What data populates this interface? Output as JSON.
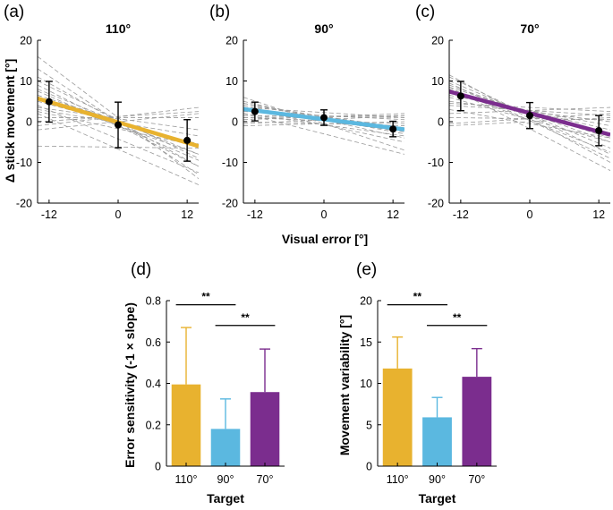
{
  "figure": {
    "ylabel_top": "Δ stick movement [°]",
    "xlabel_top": "Visual error [°]"
  },
  "top_panels": [
    {
      "label": "(a)",
      "title": "110°",
      "color": "#E8B22F",
      "x_ticks": [
        -12,
        0,
        12
      ],
      "y_ticks": [
        20,
        10,
        0,
        -10,
        -20
      ],
      "ylim": [
        -20,
        20
      ],
      "xlim": [
        -14,
        14
      ],
      "mean_line": {
        "x": [
          -14,
          14
        ],
        "y": [
          5.7,
          -6.0
        ]
      },
      "points": [
        {
          "x": -12,
          "y": 4.9,
          "err": 5.0
        },
        {
          "x": 0,
          "y": -0.8,
          "err": 5.6
        },
        {
          "x": 12,
          "y": -4.6,
          "err": 5.1
        }
      ],
      "subject_lines": [
        [
          16.0,
          -14.0
        ],
        [
          13.0,
          -13.0
        ],
        [
          11.0,
          -11.0
        ],
        [
          10.0,
          -9.0
        ],
        [
          9.0,
          -11.0
        ],
        [
          8.0,
          -8.0
        ],
        [
          7.5,
          -9.5
        ],
        [
          6.5,
          -6.0
        ],
        [
          6.0,
          -8.0
        ],
        [
          5.0,
          -5.5
        ],
        [
          4.0,
          -12.5
        ],
        [
          3.5,
          -2.0
        ],
        [
          2.5,
          -6.0
        ],
        [
          2.0,
          -15.5
        ],
        [
          1.0,
          1.0
        ],
        [
          0.0,
          2.5
        ],
        [
          -1.0,
          3.5
        ],
        [
          -2.0,
          2.0
        ],
        [
          -6.0,
          -6.5
        ],
        [
          3.0,
          -3.5
        ]
      ]
    },
    {
      "label": "(b)",
      "title": "90°",
      "color": "#5BB8E0",
      "x_ticks": [
        -12,
        0,
        12
      ],
      "y_ticks": [
        20,
        10,
        0,
        -10,
        -20
      ],
      "ylim": [
        -20,
        20
      ],
      "xlim": [
        -14,
        14
      ],
      "mean_line": {
        "x": [
          -14,
          14
        ],
        "y": [
          3.1,
          -1.9
        ]
      },
      "points": [
        {
          "x": -12,
          "y": 2.5,
          "err": 2.3
        },
        {
          "x": 0,
          "y": 1.0,
          "err": 1.9
        },
        {
          "x": 12,
          "y": -1.8,
          "err": 1.9
        }
      ],
      "subject_lines": [
        [
          5.0,
          -4.0
        ],
        [
          4.5,
          -3.0
        ],
        [
          4.0,
          -1.5
        ],
        [
          3.5,
          -5.0
        ],
        [
          3.0,
          -2.5
        ],
        [
          2.5,
          0.5
        ],
        [
          2.0,
          -3.5
        ],
        [
          1.5,
          1.0
        ],
        [
          1.0,
          -0.5
        ],
        [
          0.5,
          2.0
        ],
        [
          0.0,
          -1.0
        ],
        [
          -0.5,
          1.5
        ],
        [
          -1.0,
          0.0
        ],
        [
          6.0,
          -7.0
        ],
        [
          3.5,
          1.0
        ],
        [
          2.0,
          -8.0
        ],
        [
          1.0,
          1.5
        ],
        [
          4.5,
          -2.0
        ]
      ]
    },
    {
      "label": "(c)",
      "title": "70°",
      "color": "#7B2D8E",
      "x_ticks": [
        -12,
        0,
        12
      ],
      "y_ticks": [
        20,
        10,
        0,
        -10,
        -20
      ],
      "ylim": [
        -20,
        20
      ],
      "xlim": [
        -14,
        14
      ],
      "mean_line": {
        "x": [
          -14,
          14
        ],
        "y": [
          7.4,
          -3.2
        ]
      },
      "points": [
        {
          "x": -12,
          "y": 6.3,
          "err": 3.6
        },
        {
          "x": 0,
          "y": 1.5,
          "err": 3.2
        },
        {
          "x": 12,
          "y": -2.2,
          "err": 3.7
        }
      ],
      "subject_lines": [
        [
          11.5,
          -10.0
        ],
        [
          11.0,
          -8.0
        ],
        [
          10.0,
          -6.5
        ],
        [
          9.5,
          -9.0
        ],
        [
          9.0,
          -5.0
        ],
        [
          8.5,
          -4.0
        ],
        [
          8.0,
          -7.5
        ],
        [
          7.5,
          -3.0
        ],
        [
          7.0,
          -2.0
        ],
        [
          6.5,
          -1.0
        ],
        [
          6.0,
          -5.0
        ],
        [
          5.0,
          0.0
        ],
        [
          4.5,
          2.5
        ],
        [
          4.0,
          1.5
        ],
        [
          3.0,
          -4.0
        ],
        [
          2.0,
          3.5
        ],
        [
          1.0,
          0.5
        ],
        [
          -0.5,
          2.0
        ],
        [
          -1.0,
          1.0
        ],
        [
          8.5,
          -12.0
        ]
      ]
    }
  ],
  "chart_data": [
    {
      "type": "bar",
      "label": "(d)",
      "categories": [
        "110°",
        "90°",
        "70°"
      ],
      "values": [
        0.395,
        0.18,
        0.358
      ],
      "errors": [
        0.275,
        0.145,
        0.208
      ],
      "colors": [
        "#E8B22F",
        "#5BB8E0",
        "#7B2D8E"
      ],
      "ylabel": "Error sensitivity (-1 × slope)",
      "xlabel": "Target",
      "ylim": [
        0,
        0.8
      ],
      "y_ticks": [
        0,
        0.2,
        0.4,
        0.6,
        0.8
      ],
      "y_tick_labels": [
        "0",
        "0.2",
        "0.4",
        "0.6",
        "0.8"
      ],
      "significance": [
        {
          "from": 0,
          "to": 1,
          "value": 0.78,
          "label": "**"
        },
        {
          "from": 1,
          "to": 2,
          "value": 0.68,
          "label": "**"
        }
      ]
    },
    {
      "type": "bar",
      "label": "(e)",
      "categories": [
        "110°",
        "90°",
        "70°"
      ],
      "values": [
        11.8,
        5.9,
        10.8
      ],
      "errors": [
        3.8,
        2.4,
        3.4
      ],
      "colors": [
        "#E8B22F",
        "#5BB8E0",
        "#7B2D8E"
      ],
      "ylabel": "Movement variability [°]",
      "xlabel": "Target",
      "ylim": [
        0,
        20
      ],
      "y_ticks": [
        0,
        5,
        10,
        15,
        20
      ],
      "y_tick_labels": [
        "0",
        "5",
        "10",
        "15",
        "20"
      ],
      "significance": [
        {
          "from": 0,
          "to": 1,
          "value": 19.5,
          "label": "**"
        },
        {
          "from": 1,
          "to": 2,
          "value": 17.0,
          "label": "**"
        }
      ]
    }
  ]
}
